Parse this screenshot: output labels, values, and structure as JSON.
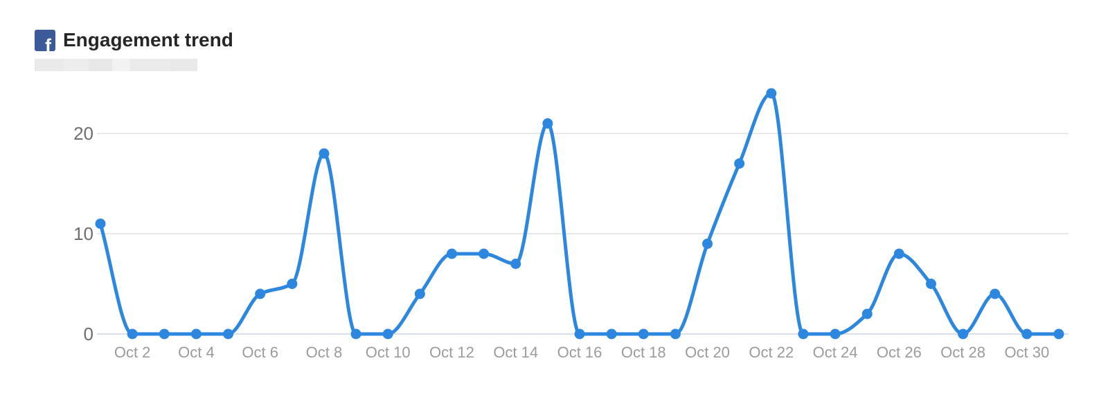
{
  "header": {
    "title": "Engagement trend",
    "icon_letter": "f",
    "facebook_brand_color": "#3d5a98"
  },
  "chart_data": {
    "type": "line",
    "title": "Engagement trend",
    "x": [
      "Oct 1",
      "Oct 2",
      "Oct 3",
      "Oct 4",
      "Oct 5",
      "Oct 6",
      "Oct 7",
      "Oct 8",
      "Oct 9",
      "Oct 10",
      "Oct 11",
      "Oct 12",
      "Oct 13",
      "Oct 14",
      "Oct 15",
      "Oct 16",
      "Oct 17",
      "Oct 18",
      "Oct 19",
      "Oct 20",
      "Oct 21",
      "Oct 22",
      "Oct 23",
      "Oct 24",
      "Oct 25",
      "Oct 26",
      "Oct 27",
      "Oct 28",
      "Oct 29",
      "Oct 30",
      "Oct 31"
    ],
    "values": [
      11,
      0,
      0,
      0,
      0,
      4,
      5,
      18,
      0,
      0,
      4,
      8,
      8,
      7,
      21,
      0,
      0,
      0,
      0,
      9,
      17,
      24,
      0,
      0,
      2,
      8,
      5,
      0,
      4,
      0,
      0
    ],
    "x_tick_labels": [
      "Oct 2",
      "Oct 4",
      "Oct 6",
      "Oct 8",
      "Oct 10",
      "Oct 12",
      "Oct 14",
      "Oct 16",
      "Oct 18",
      "Oct 20",
      "Oct 22",
      "Oct 24",
      "Oct 26",
      "Oct 28",
      "Oct 30"
    ],
    "x_tick_start_index": 1,
    "x_tick_every": 2,
    "y_ticks": [
      0,
      10,
      20
    ],
    "ylim": [
      0,
      25
    ],
    "line_color": "#2d87de",
    "marker_color": "#2d87de",
    "grid_color": "#e8e8e8",
    "zero_line_color": "#d9dfe9",
    "grid": true,
    "legend": "none",
    "curve": "smooth-monotone"
  }
}
